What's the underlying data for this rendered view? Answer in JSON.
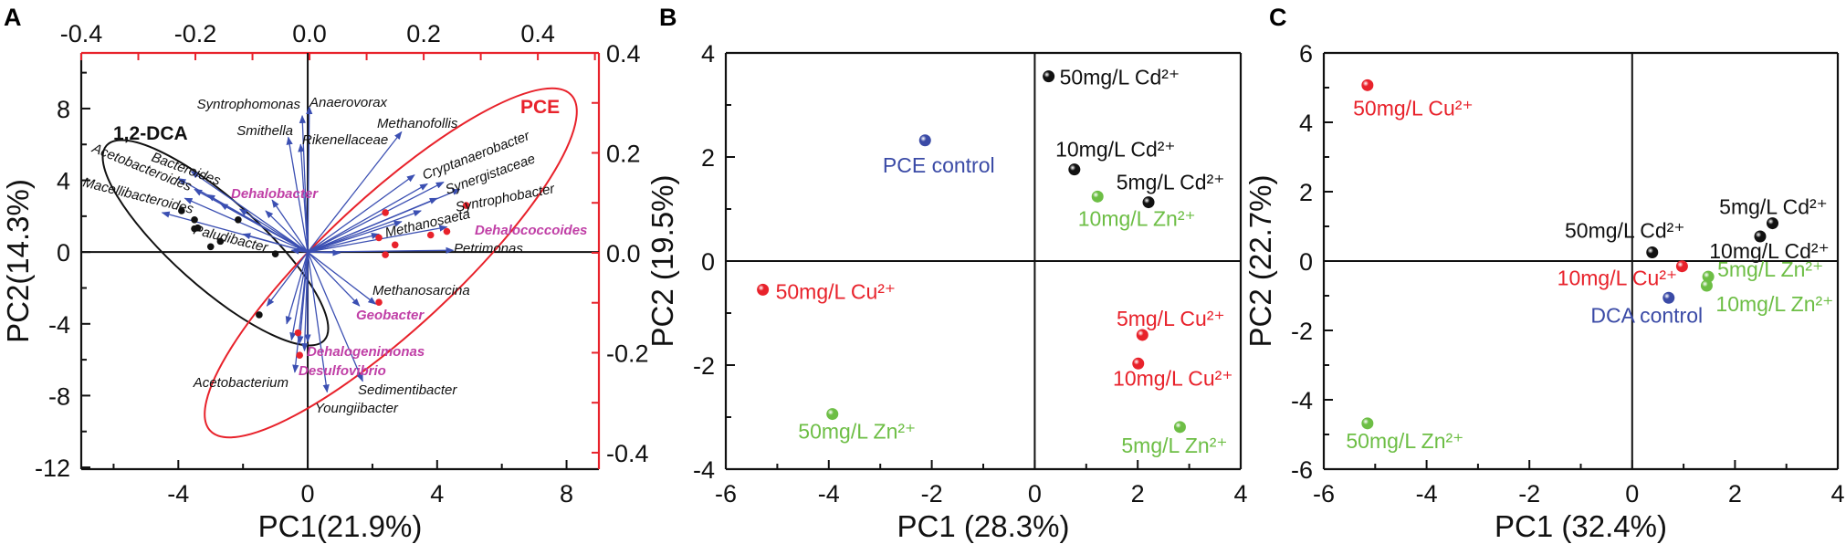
{
  "colors": {
    "black": "#111111",
    "red": "#e8222b",
    "green": "#6dbe45",
    "blue": "#3a4aa6",
    "arrow": "#3b4fb2",
    "key_taxa": "#c03fa6"
  },
  "chart_data": [
    {
      "panel": "A",
      "type": "scatter",
      "subtype": "PCA biplot",
      "xlabel": "PC1(21.9%)",
      "ylabel": "PC2(14.3%)",
      "xlim": [
        -7,
        9
      ],
      "ylim": [
        -12.1,
        11.1
      ],
      "xticks": [
        "-4",
        "0",
        "4",
        "8"
      ],
      "xtick_values": [
        -4,
        0,
        4,
        8
      ],
      "yticks": [
        "8",
        "4",
        "0",
        "-4",
        "-8",
        "-12"
      ],
      "ytick_values": [
        8,
        4,
        0,
        -4,
        -8,
        -12
      ],
      "top_axis": {
        "lim": [
          -0.4,
          0.507
        ],
        "ticks": [
          "-0.4",
          "-0.2",
          "0.0",
          "0.2",
          "0.4"
        ],
        "tick_values": [
          -0.4,
          -0.2,
          0.0,
          0.2,
          0.4
        ],
        "color": "#e8222b"
      },
      "right_axis": {
        "lim": [
          -0.433,
          0.4
        ],
        "ticks": [
          "0.4",
          "0.2",
          "0.0",
          "-0.2",
          "-0.4"
        ],
        "tick_values": [
          0.4,
          0.2,
          0.0,
          -0.2,
          -0.4
        ],
        "color": "#e8222b"
      },
      "groups": [
        {
          "name": "1,2-DCA",
          "color": "#111111",
          "points": [
            [
              -3.9,
              2.3
            ],
            [
              -3.5,
              1.8
            ],
            [
              -3.5,
              1.3
            ],
            [
              -3.4,
              1.35
            ],
            [
              -3.0,
              0.3
            ],
            [
              -2.7,
              0.6
            ],
            [
              -2.15,
              1.8
            ],
            [
              -1.0,
              -0.1
            ],
            [
              -1.5,
              -3.5
            ]
          ]
        },
        {
          "name": "PCE",
          "color": "#e8222b",
          "points": [
            [
              2.4,
              2.2
            ],
            [
              2.2,
              0.8
            ],
            [
              2.7,
              0.4
            ],
            [
              2.4,
              -0.15
            ],
            [
              3.8,
              0.95
            ],
            [
              4.3,
              1.15
            ],
            [
              4.9,
              2.6
            ],
            [
              2.2,
              -2.8
            ],
            [
              -0.3,
              -4.5
            ],
            [
              -0.25,
              -5.75
            ]
          ]
        }
      ],
      "loadings": [
        {
          "name": "Syntrophomonas",
          "x": -0.17,
          "y": 7.6,
          "key": false
        },
        {
          "name": "Anaerovorax",
          "x": 0.05,
          "y": 8.1,
          "key": false
        },
        {
          "name": "Smithella",
          "x": -0.6,
          "y": 6.4,
          "key": false
        },
        {
          "name": "Rikenellaceae",
          "x": -0.22,
          "y": 6.0,
          "key": false
        },
        {
          "name": "Methanofollis",
          "x": 2.9,
          "y": 6.7,
          "key": false
        },
        {
          "name": "Acetobacteroides",
          "x": -4.0,
          "y": 4.1,
          "key": false
        },
        {
          "name": "Bacteroides",
          "x": -3.6,
          "y": 4.5,
          "key": false
        },
        {
          "name": "Macellibacteroides",
          "x": -4.5,
          "y": 2.2,
          "key": false
        },
        {
          "name": "Dehalobacter",
          "x": -1.1,
          "y": 2.9,
          "key": true
        },
        {
          "name": "Paludibacter",
          "x": -2.0,
          "y": 1.0,
          "key": false
        },
        {
          "name": "Cryptanaerobacter",
          "x": 3.3,
          "y": 4.3,
          "key": false
        },
        {
          "name": "Synergistaceae",
          "x": 4.2,
          "y": 3.9,
          "key": false
        },
        {
          "name": "Syntrophobacter",
          "x": 4.7,
          "y": 3.5,
          "key": false
        },
        {
          "name": "Methanosaeta",
          "x": 2.2,
          "y": 1.0,
          "key": false
        },
        {
          "name": "Dehalococcoides",
          "x": 4.3,
          "y": 1.4,
          "key": true
        },
        {
          "name": "Petrimonas",
          "x": 4.5,
          "y": 0.1,
          "key": false
        },
        {
          "name": "Methanosarcina",
          "x": 2.1,
          "y": -2.9,
          "key": false
        },
        {
          "name": "Geobacter",
          "x": 1.6,
          "y": -3.0,
          "key": true
        },
        {
          "name": "Dehalogenimonas",
          "x": -0.1,
          "y": -5.5,
          "key": true
        },
        {
          "name": "Desulfovibrio",
          "x": -0.4,
          "y": -6.7,
          "key": true
        },
        {
          "name": "Acetobacterium",
          "x": -0.5,
          "y": -4.9,
          "key": false
        },
        {
          "name": "Sedimentibacter",
          "x": 1.7,
          "y": -7.2,
          "key": false
        },
        {
          "name": "Youngiibacter",
          "x": 0.6,
          "y": -7.8,
          "key": false
        }
      ],
      "unlabeled_loadings": [
        [
          -3.8,
          3.0
        ],
        [
          -3.5,
          3.5
        ],
        [
          -3.1,
          3.2
        ],
        [
          -2.7,
          2.7
        ],
        [
          -2.1,
          2.4
        ],
        [
          -1.3,
          2.3
        ],
        [
          -0.5,
          0.1
        ],
        [
          3.7,
          3.8
        ],
        [
          4.0,
          3.0
        ],
        [
          3.5,
          2.3
        ],
        [
          2.9,
          1.7
        ],
        [
          1.0,
          -0.05
        ],
        [
          0.0,
          -5.0
        ],
        [
          -0.25,
          -5.1
        ],
        [
          -1.26,
          -3.0
        ],
        [
          -0.65,
          -4.0
        ]
      ],
      "ellipse_labels": [
        "1,2-DCA",
        "PCE"
      ]
    },
    {
      "panel": "B",
      "type": "scatter",
      "xlabel": "PC1 (28.3%)",
      "ylabel": "PC2 (19.5%)",
      "xlim": [
        -6,
        4
      ],
      "ylim": [
        -4,
        4
      ],
      "xticks": [
        "-6",
        "-4",
        "-2",
        "0",
        "2",
        "4"
      ],
      "xtick_values": [
        -6,
        -4,
        -2,
        0,
        2,
        4
      ],
      "yticks": [
        "4",
        "2",
        "0",
        "-2",
        "-4"
      ],
      "ytick_values": [
        4,
        2,
        0,
        -2,
        -4
      ],
      "points": [
        {
          "label": "50mg/L Cd²⁺",
          "x": 0.27,
          "y": 3.55,
          "color": "#111111"
        },
        {
          "label": "PCE control",
          "x": -2.13,
          "y": 2.32,
          "color": "#3a4aa6"
        },
        {
          "label": "10mg/L Cd²⁺",
          "x": 0.77,
          "y": 1.76,
          "color": "#111111"
        },
        {
          "label": "5mg/L Cd²⁺",
          "x": 2.21,
          "y": 1.13,
          "color": "#111111"
        },
        {
          "label": "10mg/L Zn²⁺",
          "x": 1.22,
          "y": 1.24,
          "color": "#6dbe45"
        },
        {
          "label": "50mg/L Cu²⁺",
          "x": -5.28,
          "y": -0.55,
          "color": "#e8222b"
        },
        {
          "label": "5mg/L Cu²⁺",
          "x": 2.09,
          "y": -1.42,
          "color": "#e8222b"
        },
        {
          "label": "10mg/L Cu²⁺",
          "x": 2.01,
          "y": -1.97,
          "color": "#e8222b"
        },
        {
          "label": "50mg/L Zn²⁺",
          "x": -3.93,
          "y": -2.94,
          "color": "#6dbe45"
        },
        {
          "label": "5mg/L Zn²⁺",
          "x": 2.82,
          "y": -3.19,
          "color": "#6dbe45"
        }
      ]
    },
    {
      "panel": "C",
      "type": "scatter",
      "xlabel": "PC1 (32.4%)",
      "ylabel": "PC2 (22.7%)",
      "xlim": [
        -6,
        4
      ],
      "ylim": [
        -6,
        6
      ],
      "xticks": [
        "-6",
        "-4",
        "-2",
        "0",
        "2",
        "4"
      ],
      "xtick_values": [
        -6,
        -4,
        -2,
        0,
        2,
        4
      ],
      "yticks": [
        "6",
        "4",
        "2",
        "0",
        "-2",
        "-4",
        "-6"
      ],
      "ytick_values": [
        6,
        4,
        2,
        0,
        -2,
        -4,
        -6
      ],
      "points": [
        {
          "label": "50mg/L Cu²⁺",
          "x": -5.15,
          "y": 5.07,
          "color": "#e8222b"
        },
        {
          "label": "50mg/L Zn²⁺",
          "x": -5.15,
          "y": -4.68,
          "color": "#6dbe45"
        },
        {
          "label": "5mg/L Cd²⁺",
          "x": 2.73,
          "y": 1.09,
          "color": "#111111"
        },
        {
          "label": "10mg/L Cd²⁺",
          "x": 2.49,
          "y": 0.71,
          "color": "#111111"
        },
        {
          "label": "50mg/L Cd²⁺",
          "x": 0.39,
          "y": 0.25,
          "color": "#111111"
        },
        {
          "label": "10mg/L Cu²⁺",
          "x": 0.97,
          "y": -0.15,
          "color": "#e8222b"
        },
        {
          "label": "DCA control",
          "x": 0.71,
          "y": -1.06,
          "color": "#3a4aa6"
        },
        {
          "label": "5mg/L Zn²⁺",
          "x": 1.48,
          "y": -0.45,
          "color": "#6dbe45"
        },
        {
          "label": "10mg/L Zn²⁺",
          "x": 1.45,
          "y": -0.71,
          "color": "#6dbe45"
        }
      ]
    }
  ]
}
